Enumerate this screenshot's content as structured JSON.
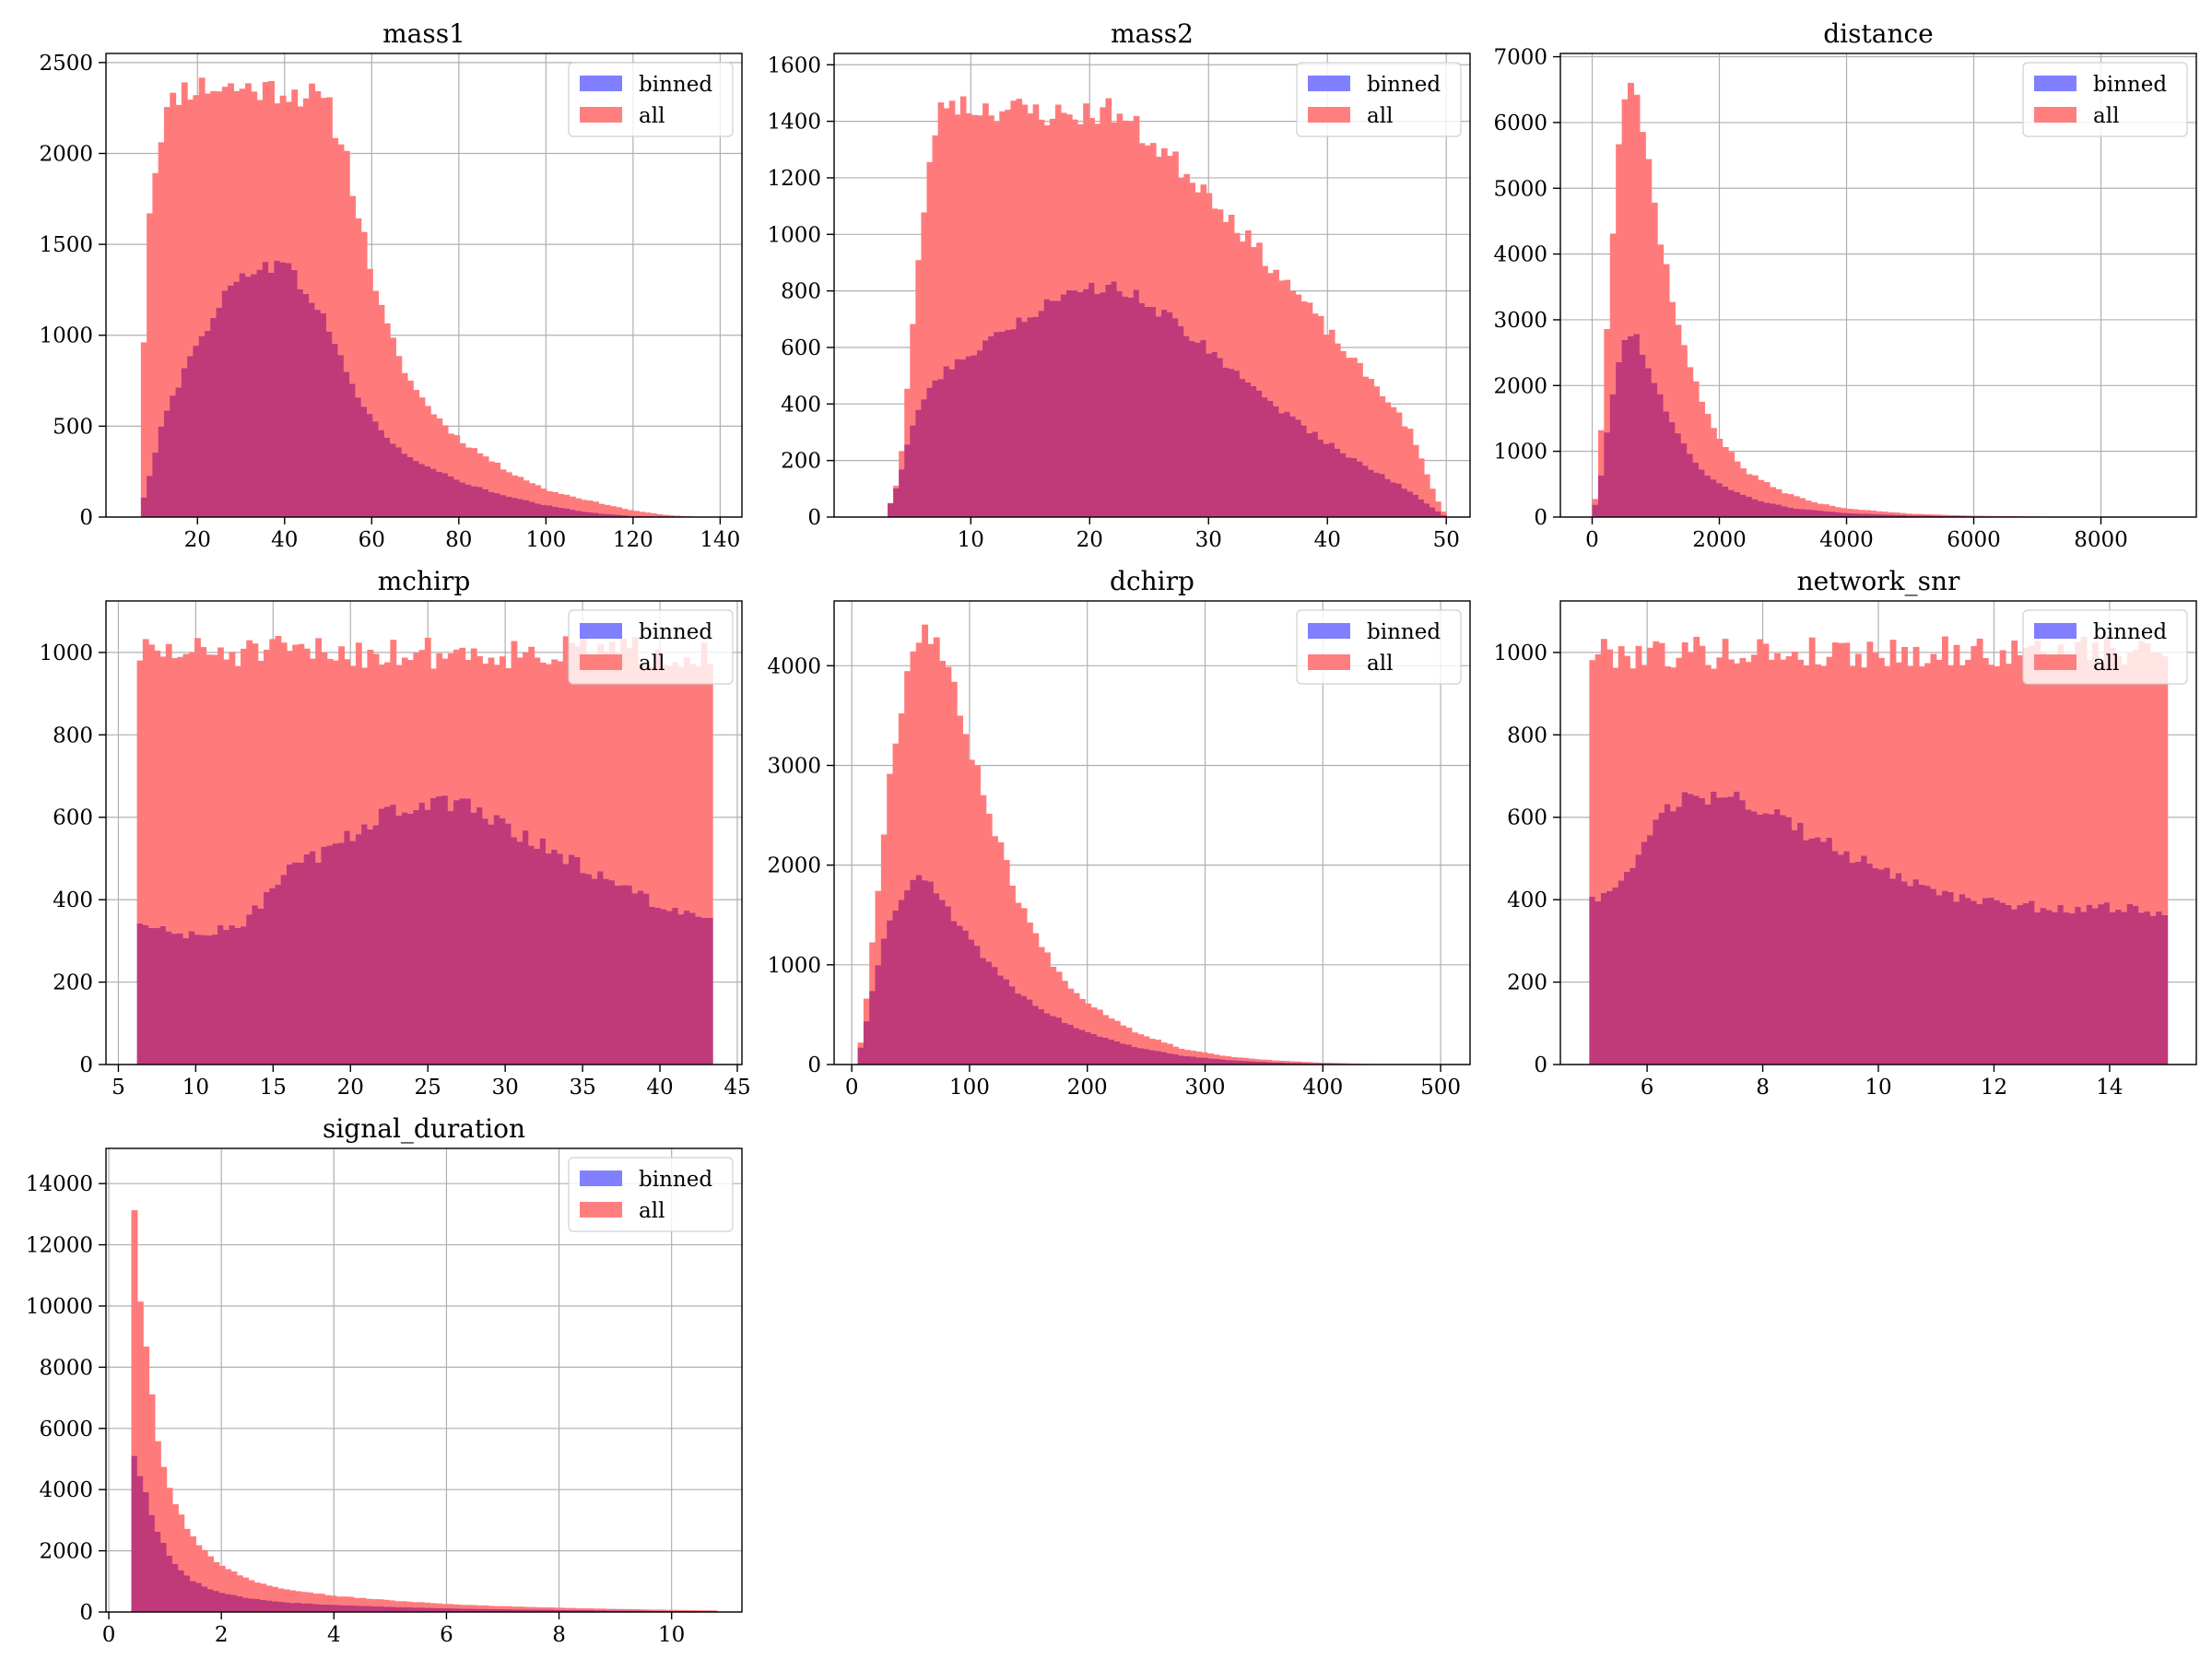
{
  "figure": {
    "colors": {
      "binned": "#0000ff",
      "all": "#ff0000",
      "overlap": "#c03a7a",
      "grid": "#b0b0b0"
    },
    "legend_labels": {
      "binned": "binned",
      "all": "all"
    }
  },
  "chart_data": [
    {
      "type": "histogram",
      "title": "mass1",
      "xlim": [
        -1,
        145
      ],
      "ylim": [
        0,
        2550
      ],
      "xticks": [
        20,
        40,
        60,
        80,
        100,
        120,
        140
      ],
      "yticks": [
        0,
        500,
        1000,
        1500,
        2000,
        2500
      ],
      "grid": true,
      "legend_position": "upper right",
      "x_range": [
        7,
        140
      ],
      "all_knots": [
        [
          7,
          620
        ],
        [
          9,
          1700
        ],
        [
          12,
          2180
        ],
        [
          16,
          2350
        ],
        [
          20,
          2370
        ],
        [
          30,
          2360
        ],
        [
          40,
          2350
        ],
        [
          46,
          2320
        ],
        [
          50,
          2250
        ],
        [
          54,
          2000
        ],
        [
          58,
          1550
        ],
        [
          62,
          1150
        ],
        [
          66,
          880
        ],
        [
          70,
          700
        ],
        [
          75,
          550
        ],
        [
          80,
          430
        ],
        [
          90,
          270
        ],
        [
          100,
          150
        ],
        [
          110,
          90
        ],
        [
          120,
          35
        ],
        [
          128,
          10
        ],
        [
          135,
          2
        ],
        [
          140,
          0
        ]
      ],
      "binned_knots": [
        [
          7,
          50
        ],
        [
          9,
          220
        ],
        [
          12,
          550
        ],
        [
          16,
          750
        ],
        [
          20,
          950
        ],
        [
          25,
          1180
        ],
        [
          30,
          1320
        ],
        [
          35,
          1400
        ],
        [
          40,
          1380
        ],
        [
          45,
          1250
        ],
        [
          50,
          1050
        ],
        [
          55,
          750
        ],
        [
          60,
          540
        ],
        [
          65,
          400
        ],
        [
          70,
          310
        ],
        [
          80,
          200
        ],
        [
          90,
          120
        ],
        [
          100,
          65
        ],
        [
          110,
          25
        ],
        [
          120,
          6
        ],
        [
          140,
          0
        ]
      ],
      "noise": 0.035,
      "seed": 11
    },
    {
      "type": "histogram",
      "title": "mass2",
      "xlim": [
        -1.5,
        52
      ],
      "ylim": [
        0,
        1640
      ],
      "xticks": [
        10,
        20,
        30,
        40,
        50
      ],
      "yticks": [
        0,
        200,
        400,
        600,
        800,
        1000,
        1200,
        1400,
        1600
      ],
      "grid": true,
      "legend_position": "upper right",
      "x_range": [
        3,
        50
      ],
      "all_knots": [
        [
          3,
          20
        ],
        [
          4,
          150
        ],
        [
          5,
          620
        ],
        [
          6,
          1080
        ],
        [
          7,
          1380
        ],
        [
          8,
          1480
        ],
        [
          10,
          1450
        ],
        [
          14,
          1440
        ],
        [
          18,
          1420
        ],
        [
          22,
          1440
        ],
        [
          26,
          1300
        ],
        [
          30,
          1150
        ],
        [
          34,
          950
        ],
        [
          38,
          760
        ],
        [
          42,
          560
        ],
        [
          45,
          420
        ],
        [
          47,
          300
        ],
        [
          49,
          80
        ],
        [
          50,
          0
        ]
      ],
      "binned_knots": [
        [
          3,
          20
        ],
        [
          4,
          140
        ],
        [
          5,
          320
        ],
        [
          6,
          420
        ],
        [
          8,
          520
        ],
        [
          10,
          570
        ],
        [
          14,
          700
        ],
        [
          18,
          780
        ],
        [
          22,
          830
        ],
        [
          26,
          730
        ],
        [
          30,
          600
        ],
        [
          34,
          450
        ],
        [
          38,
          320
        ],
        [
          42,
          210
        ],
        [
          45,
          140
        ],
        [
          47,
          90
        ],
        [
          49,
          30
        ],
        [
          50,
          0
        ]
      ],
      "noise": 0.035,
      "seed": 23
    },
    {
      "type": "histogram",
      "title": "distance",
      "xlim": [
        -500,
        9500
      ],
      "ylim": [
        0,
        7050
      ],
      "xticks": [
        0,
        2000,
        4000,
        6000,
        8000
      ],
      "yticks": [
        0,
        1000,
        2000,
        3000,
        4000,
        5000,
        6000,
        7000
      ],
      "grid": true,
      "legend_position": "upper right",
      "x_range": [
        0,
        9300
      ],
      "all_knots": [
        [
          0,
          0
        ],
        [
          100,
          600
        ],
        [
          200,
          2400
        ],
        [
          300,
          4000
        ],
        [
          400,
          5700
        ],
        [
          500,
          6400
        ],
        [
          600,
          6700
        ],
        [
          700,
          6400
        ],
        [
          850,
          5600
        ],
        [
          1000,
          4600
        ],
        [
          1200,
          3600
        ],
        [
          1400,
          2700
        ],
        [
          1700,
          1800
        ],
        [
          2000,
          1200
        ],
        [
          2400,
          700
        ],
        [
          3000,
          380
        ],
        [
          3500,
          220
        ],
        [
          4000,
          130
        ],
        [
          5000,
          50
        ],
        [
          6000,
          20
        ],
        [
          7000,
          8
        ],
        [
          8000,
          3
        ],
        [
          9300,
          0
        ]
      ],
      "binned_knots": [
        [
          0,
          0
        ],
        [
          100,
          400
        ],
        [
          200,
          1000
        ],
        [
          300,
          1800
        ],
        [
          450,
          2500
        ],
        [
          600,
          2780
        ],
        [
          700,
          2750
        ],
        [
          850,
          2400
        ],
        [
          1000,
          2000
        ],
        [
          1200,
          1500
        ],
        [
          1500,
          1000
        ],
        [
          1800,
          650
        ],
        [
          2200,
          400
        ],
        [
          2700,
          230
        ],
        [
          3200,
          130
        ],
        [
          4000,
          60
        ],
        [
          5000,
          25
        ],
        [
          6000,
          10
        ],
        [
          7000,
          4
        ],
        [
          9300,
          0
        ]
      ],
      "noise": 0.03,
      "seed": 37
    },
    {
      "type": "histogram",
      "title": "mchirp",
      "xlim": [
        4.2,
        45.3
      ],
      "ylim": [
        0,
        1125
      ],
      "xticks": [
        5,
        10,
        15,
        20,
        25,
        30,
        35,
        40,
        45
      ],
      "yticks": [
        0,
        200,
        400,
        600,
        800,
        1000
      ],
      "grid": true,
      "legend_position": "upper right",
      "x_range": [
        6.2,
        43.4
      ],
      "all_knots": [
        [
          6.2,
          1000
        ],
        [
          43.4,
          1000
        ]
      ],
      "binned_knots": [
        [
          6.2,
          340
        ],
        [
          10,
          310
        ],
        [
          13,
          340
        ],
        [
          16,
          470
        ],
        [
          19,
          530
        ],
        [
          22,
          610
        ],
        [
          25,
          630
        ],
        [
          28,
          630
        ],
        [
          31,
          560
        ],
        [
          34,
          500
        ],
        [
          37,
          440
        ],
        [
          40,
          390
        ],
        [
          43.4,
          340
        ]
      ],
      "noise": 0.04,
      "seed": 51
    },
    {
      "type": "histogram",
      "title": "dchirp",
      "xlim": [
        -15,
        525
      ],
      "ylim": [
        0,
        4650
      ],
      "xticks": [
        0,
        100,
        200,
        300,
        400,
        500
      ],
      "yticks": [
        0,
        1000,
        2000,
        3000,
        4000
      ],
      "grid": true,
      "legend_position": "upper right",
      "x_range": [
        5,
        500
      ],
      "all_knots": [
        [
          5,
          50
        ],
        [
          10,
          400
        ],
        [
          20,
          1500
        ],
        [
          30,
          2700
        ],
        [
          40,
          3500
        ],
        [
          50,
          4100
        ],
        [
          60,
          4400
        ],
        [
          70,
          4300
        ],
        [
          80,
          4000
        ],
        [
          100,
          3200
        ],
        [
          120,
          2400
        ],
        [
          140,
          1700
        ],
        [
          160,
          1200
        ],
        [
          180,
          850
        ],
        [
          200,
          620
        ],
        [
          240,
          330
        ],
        [
          280,
          160
        ],
        [
          320,
          80
        ],
        [
          360,
          40
        ],
        [
          400,
          18
        ],
        [
          440,
          6
        ],
        [
          500,
          0
        ]
      ],
      "binned_knots": [
        [
          5,
          40
        ],
        [
          10,
          300
        ],
        [
          20,
          900
        ],
        [
          30,
          1400
        ],
        [
          45,
          1750
        ],
        [
          60,
          1880
        ],
        [
          70,
          1750
        ],
        [
          85,
          1500
        ],
        [
          100,
          1250
        ],
        [
          120,
          980
        ],
        [
          140,
          740
        ],
        [
          160,
          560
        ],
        [
          180,
          430
        ],
        [
          200,
          320
        ],
        [
          240,
          180
        ],
        [
          280,
          90
        ],
        [
          320,
          45
        ],
        [
          360,
          20
        ],
        [
          400,
          8
        ],
        [
          500,
          0
        ]
      ],
      "noise": 0.03,
      "seed": 67
    },
    {
      "type": "histogram",
      "title": "network_snr",
      "xlim": [
        4.5,
        15.5
      ],
      "ylim": [
        0,
        1125
      ],
      "xticks": [
        6,
        8,
        10,
        12,
        14
      ],
      "yticks": [
        0,
        200,
        400,
        600,
        800,
        1000
      ],
      "grid": true,
      "legend_position": "upper right",
      "x_range": [
        5,
        15
      ],
      "all_knots": [
        [
          5,
          1000
        ],
        [
          15,
          1000
        ]
      ],
      "binned_knots": [
        [
          5,
          400
        ],
        [
          5.4,
          420
        ],
        [
          5.8,
          500
        ],
        [
          6.2,
          600
        ],
        [
          6.8,
          650
        ],
        [
          7.5,
          640
        ],
        [
          8.2,
          610
        ],
        [
          9,
          540
        ],
        [
          10,
          470
        ],
        [
          11,
          420
        ],
        [
          12,
          390
        ],
        [
          13,
          380
        ],
        [
          14,
          380
        ],
        [
          15,
          370
        ]
      ],
      "noise": 0.04,
      "seed": 79
    },
    {
      "type": "histogram",
      "title": "signal_duration",
      "xlim": [
        -0.05,
        11.25
      ],
      "ylim": [
        0,
        15150
      ],
      "xticks": [
        0,
        2,
        4,
        6,
        8,
        10
      ],
      "yticks": [
        0,
        2000,
        4000,
        6000,
        8000,
        10000,
        12000,
        14000
      ],
      "grid": true,
      "legend_position": "upper right",
      "x_range": [
        0.4,
        10.8
      ],
      "all_knots": [
        [
          0.4,
          14800
        ],
        [
          0.55,
          10500
        ],
        [
          0.7,
          8200
        ],
        [
          0.85,
          5900
        ],
        [
          1,
          4600
        ],
        [
          1.2,
          3400
        ],
        [
          1.5,
          2400
        ],
        [
          2,
          1500
        ],
        [
          2.5,
          1050
        ],
        [
          3,
          800
        ],
        [
          4,
          530
        ],
        [
          5,
          380
        ],
        [
          6,
          260
        ],
        [
          7,
          190
        ],
        [
          8,
          140
        ],
        [
          9,
          100
        ],
        [
          10,
          70
        ],
        [
          10.8,
          50
        ]
      ],
      "binned_knots": [
        [
          0.4,
          5400
        ],
        [
          0.55,
          4400
        ],
        [
          0.7,
          3600
        ],
        [
          0.85,
          2700
        ],
        [
          1,
          2100
        ],
        [
          1.2,
          1500
        ],
        [
          1.5,
          1000
        ],
        [
          2,
          620
        ],
        [
          2.5,
          440
        ],
        [
          3,
          330
        ],
        [
          4,
          230
        ],
        [
          5,
          170
        ],
        [
          6,
          120
        ],
        [
          7,
          90
        ],
        [
          8,
          70
        ],
        [
          9,
          50
        ],
        [
          10,
          35
        ],
        [
          10.8,
          25
        ]
      ],
      "noise": 0.03,
      "seed": 97
    }
  ]
}
